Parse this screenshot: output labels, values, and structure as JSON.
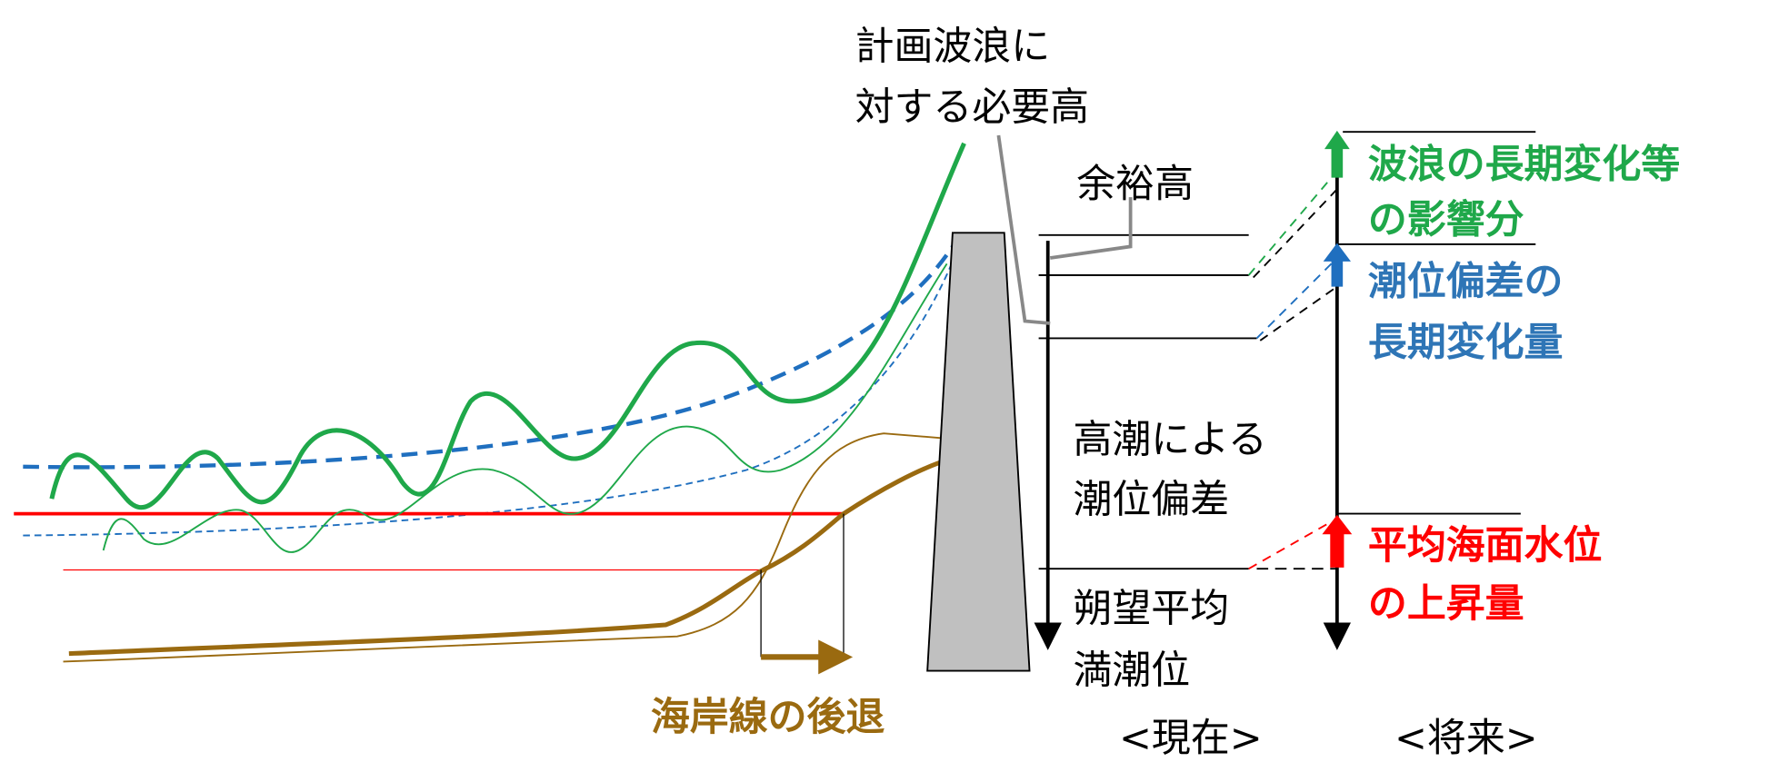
{
  "top_label": {
    "lines": [
      "計画波浪に",
      "対する必要高"
    ]
  },
  "present": {
    "margin": "余裕高",
    "surge": {
      "lines": [
        "高潮による",
        "潮位偏差"
      ]
    },
    "mean_high_water": {
      "lines": [
        "朔望平均",
        "満潮位"
      ]
    },
    "caption": "<現在>"
  },
  "future": {
    "caption": "<将来>",
    "wave_change": {
      "lines": [
        "波浪の長期変化等",
        "の影響分"
      ]
    },
    "surge_change": {
      "lines": [
        "潮位偏差の",
        "長期変化量"
      ]
    },
    "sea_level_rise": {
      "lines": [
        "平均海面水位",
        "の上昇量"
      ]
    }
  },
  "shoreline_retreat": "海岸線の後退"
}
